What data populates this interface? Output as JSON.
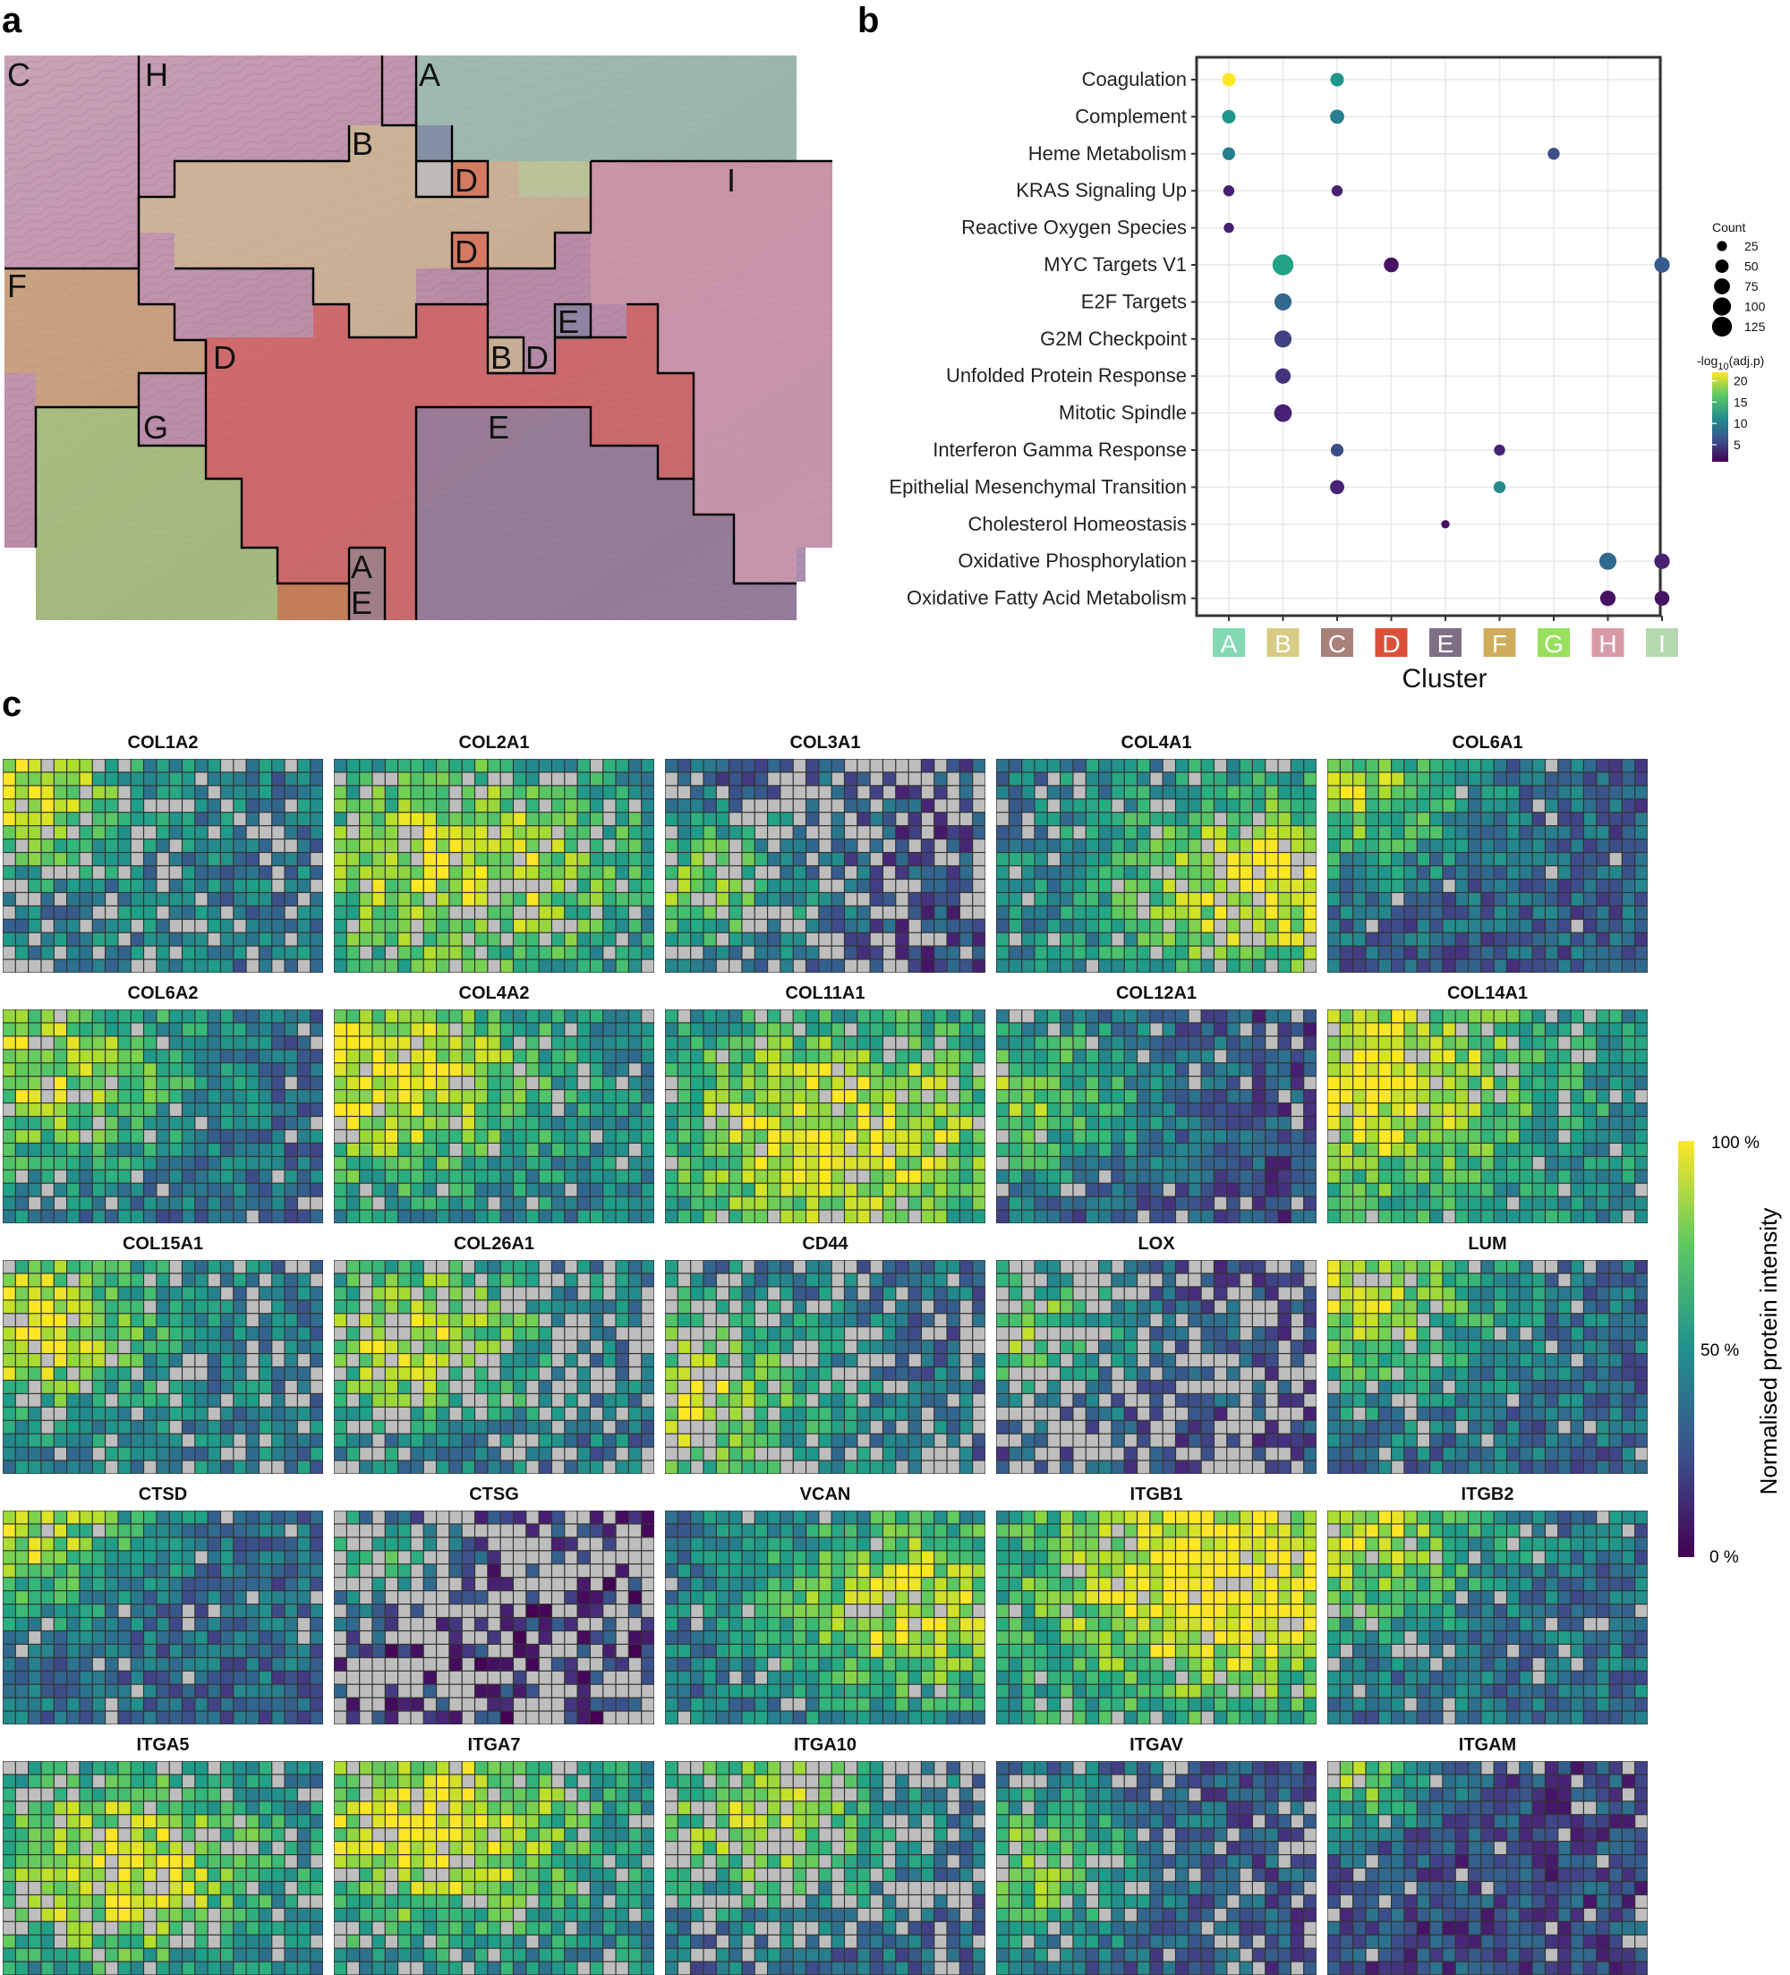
{
  "panel_labels": {
    "a": "a",
    "b": "b",
    "c": "c"
  },
  "panel_a": {
    "description_type": "histology",
    "clusters": [
      {
        "id": "A",
        "color": "#84d8b4"
      },
      {
        "id": "B",
        "color": "#d6cc86"
      },
      {
        "id": "C",
        "color": "#a9807a"
      },
      {
        "id": "D",
        "color": "#dd4f3a"
      },
      {
        "id": "E",
        "color": "#7f6f86"
      },
      {
        "id": "F",
        "color": "#cfac5c"
      },
      {
        "id": "G",
        "color": "#98e05c"
      },
      {
        "id": "H",
        "color": "#d99aa7"
      },
      {
        "id": "I",
        "color": "#b6d8b0"
      }
    ],
    "region_labels": [
      "C",
      "H",
      "A",
      "B",
      "D",
      "D",
      "I",
      "F",
      "E",
      "D",
      "B",
      "D",
      "G",
      "E",
      "A",
      "E"
    ]
  },
  "chart_data": [
    {
      "type": "scatter",
      "subtype": "dot-plot",
      "xlabel": "Cluster",
      "categories": [
        "A",
        "B",
        "C",
        "D",
        "E",
        "F",
        "G",
        "H",
        "I"
      ],
      "category_colors": [
        "#84d8b4",
        "#d6cc86",
        "#a9807a",
        "#dd4f3a",
        "#7f6f86",
        "#cfac5c",
        "#98e05c",
        "#d99aa7",
        "#b6d8b0"
      ],
      "pathways": [
        "Coagulation",
        "Complement",
        "Heme Metabolism",
        "KRAS Signaling Up",
        "Reactive Oxygen Species",
        "MYC Targets V1",
        "E2F Targets",
        "G2M Checkpoint",
        "Unfolded Protein Response",
        "Mitotic Spindle",
        "Interferon Gamma Response",
        "Epithelial Mesenchymal Transition",
        "Cholesterol Homeostasis",
        "Oxidative Phosphorylation",
        "Oxidative Fatty Acid Metabolism"
      ],
      "points": [
        {
          "pathway": "Coagulation",
          "cluster": "A",
          "count": 40,
          "neglog10p": 22
        },
        {
          "pathway": "Coagulation",
          "cluster": "C",
          "count": 40,
          "neglog10p": 12
        },
        {
          "pathway": "Complement",
          "cluster": "A",
          "count": 40,
          "neglog10p": 12
        },
        {
          "pathway": "Complement",
          "cluster": "C",
          "count": 45,
          "neglog10p": 10
        },
        {
          "pathway": "Heme Metabolism",
          "cluster": "A",
          "count": 35,
          "neglog10p": 10
        },
        {
          "pathway": "Heme Metabolism",
          "cluster": "G",
          "count": 30,
          "neglog10p": 6
        },
        {
          "pathway": "KRAS Signaling Up",
          "cluster": "A",
          "count": 25,
          "neglog10p": 3
        },
        {
          "pathway": "KRAS Signaling Up",
          "cluster": "C",
          "count": 25,
          "neglog10p": 3
        },
        {
          "pathway": "Reactive Oxygen Species",
          "cluster": "A",
          "count": 20,
          "neglog10p": 3
        },
        {
          "pathway": "MYC Targets V1",
          "cluster": "B",
          "count": 110,
          "neglog10p": 13
        },
        {
          "pathway": "MYC Targets V1",
          "cluster": "D",
          "count": 50,
          "neglog10p": 2
        },
        {
          "pathway": "MYC Targets V1",
          "cluster": "I",
          "count": 55,
          "neglog10p": 7
        },
        {
          "pathway": "E2F Targets",
          "cluster": "B",
          "count": 70,
          "neglog10p": 8
        },
        {
          "pathway": "G2M Checkpoint",
          "cluster": "B",
          "count": 70,
          "neglog10p": 5
        },
        {
          "pathway": "Unfolded Protein Response",
          "cluster": "B",
          "count": 55,
          "neglog10p": 4
        },
        {
          "pathway": "Mitotic Spindle",
          "cluster": "B",
          "count": 75,
          "neglog10p": 3
        },
        {
          "pathway": "Interferon Gamma Response",
          "cluster": "C",
          "count": 35,
          "neglog10p": 6
        },
        {
          "pathway": "Interferon Gamma Response",
          "cluster": "F",
          "count": 25,
          "neglog10p": 3
        },
        {
          "pathway": "Epithelial Mesenchymal Transition",
          "cluster": "C",
          "count": 45,
          "neglog10p": 3
        },
        {
          "pathway": "Epithelial Mesenchymal Transition",
          "cluster": "F",
          "count": 30,
          "neglog10p": 11
        },
        {
          "pathway": "Cholesterol Homeostasis",
          "cluster": "E",
          "count": 12,
          "neglog10p": 2
        },
        {
          "pathway": "Oxidative Phosphorylation",
          "cluster": "H",
          "count": 70,
          "neglog10p": 8
        },
        {
          "pathway": "Oxidative Phosphorylation",
          "cluster": "I",
          "count": 55,
          "neglog10p": 3
        },
        {
          "pathway": "Oxidative Fatty Acid Metabolism",
          "cluster": "H",
          "count": 55,
          "neglog10p": 2
        },
        {
          "pathway": "Oxidative Fatty Acid Metabolism",
          "cluster": "I",
          "count": 50,
          "neglog10p": 2
        }
      ],
      "size_legend": {
        "title": "Count",
        "values": [
          25,
          50,
          75,
          100,
          125
        ]
      },
      "color_legend": {
        "title_pre": "-log",
        "title_sub": "10",
        "title_post": "(adj.p)",
        "ticks": [
          20,
          15,
          10,
          5
        ],
        "range": [
          1,
          22
        ]
      }
    },
    {
      "type": "heatmap",
      "grid_cols": 25,
      "grid_rows": 16,
      "missing_color": "#bebebe",
      "colorbar": {
        "title": "Normalised protein intensity",
        "ticks": [
          "100 %",
          "50 %",
          "0 %"
        ]
      },
      "panels": [
        {
          "name": "COL1A2",
          "base": 0.55,
          "hx": 0.05,
          "hy": 0.15,
          "hs": 0.25,
          "miss": 0.25
        },
        {
          "name": "COL2A1",
          "base": 0.5,
          "hx": 0.4,
          "hy": 0.5,
          "hs": 0.45,
          "miss": 0.15
        },
        {
          "name": "COL3A1",
          "base": 0.3,
          "hx": 0.05,
          "hy": 0.6,
          "hs": 0.3,
          "miss": 0.35
        },
        {
          "name": "COL4A1",
          "base": 0.55,
          "hx": 0.85,
          "hy": 0.6,
          "hs": 0.35,
          "miss": 0.15
        },
        {
          "name": "COL6A1",
          "base": 0.4,
          "hx": 0.05,
          "hy": 0.1,
          "hs": 0.3,
          "miss": 0.05
        },
        {
          "name": "COL6A2",
          "base": 0.45,
          "hx": 0.05,
          "hy": 0.25,
          "hs": 0.4,
          "miss": 0.08
        },
        {
          "name": "COL4A2",
          "base": 0.6,
          "hx": 0.15,
          "hy": 0.3,
          "hs": 0.35,
          "miss": 0.08
        },
        {
          "name": "COL11A1",
          "base": 0.55,
          "hx": 0.55,
          "hy": 0.6,
          "hs": 0.45,
          "miss": 0.1
        },
        {
          "name": "COL12A1",
          "base": 0.3,
          "hx": 0.05,
          "hy": 0.4,
          "hs": 0.35,
          "miss": 0.08
        },
        {
          "name": "COL14A1",
          "base": 0.6,
          "hx": 0.05,
          "hy": 0.3,
          "hs": 0.45,
          "miss": 0.08
        },
        {
          "name": "COL15A1",
          "base": 0.55,
          "hx": 0.05,
          "hy": 0.3,
          "hs": 0.3,
          "miss": 0.2
        },
        {
          "name": "COL26A1",
          "base": 0.5,
          "hx": 0.25,
          "hy": 0.35,
          "hs": 0.3,
          "miss": 0.3
        },
        {
          "name": "CD44",
          "base": 0.45,
          "hx": 0.05,
          "hy": 0.65,
          "hs": 0.35,
          "miss": 0.3
        },
        {
          "name": "LOX",
          "base": 0.35,
          "hx": 0.05,
          "hy": 0.3,
          "hs": 0.25,
          "miss": 0.45
        },
        {
          "name": "LUM",
          "base": 0.45,
          "hx": 0.05,
          "hy": 0.15,
          "hs": 0.35,
          "miss": 0.12
        },
        {
          "name": "CTSD",
          "base": 0.45,
          "hx": 0.05,
          "hy": 0.05,
          "hs": 0.3,
          "miss": 0.05
        },
        {
          "name": "CTSG",
          "base": 0.2,
          "hx": 0.05,
          "hy": 0.2,
          "hs": 0.2,
          "miss": 0.55
        },
        {
          "name": "VCAN",
          "base": 0.5,
          "hx": 0.8,
          "hy": 0.45,
          "hs": 0.35,
          "miss": 0.05
        },
        {
          "name": "ITGB1",
          "base": 0.7,
          "hx": 0.7,
          "hy": 0.3,
          "hs": 0.4,
          "miss": 0.08
        },
        {
          "name": "ITGB2",
          "base": 0.5,
          "hx": 0.05,
          "hy": 0.1,
          "hs": 0.3,
          "miss": 0.1
        },
        {
          "name": "ITGA5",
          "base": 0.55,
          "hx": 0.35,
          "hy": 0.5,
          "hs": 0.35,
          "miss": 0.2
        },
        {
          "name": "ITGA7",
          "base": 0.6,
          "hx": 0.3,
          "hy": 0.3,
          "hs": 0.35,
          "miss": 0.15
        },
        {
          "name": "ITGA10",
          "base": 0.45,
          "hx": 0.3,
          "hy": 0.25,
          "hs": 0.3,
          "miss": 0.3
        },
        {
          "name": "ITGAV",
          "base": 0.35,
          "hx": 0.05,
          "hy": 0.5,
          "hs": 0.3,
          "miss": 0.15
        },
        {
          "name": "ITGAM",
          "base": 0.3,
          "hx": 0.05,
          "hy": 0.05,
          "hs": 0.2,
          "miss": 0.12
        }
      ]
    }
  ]
}
